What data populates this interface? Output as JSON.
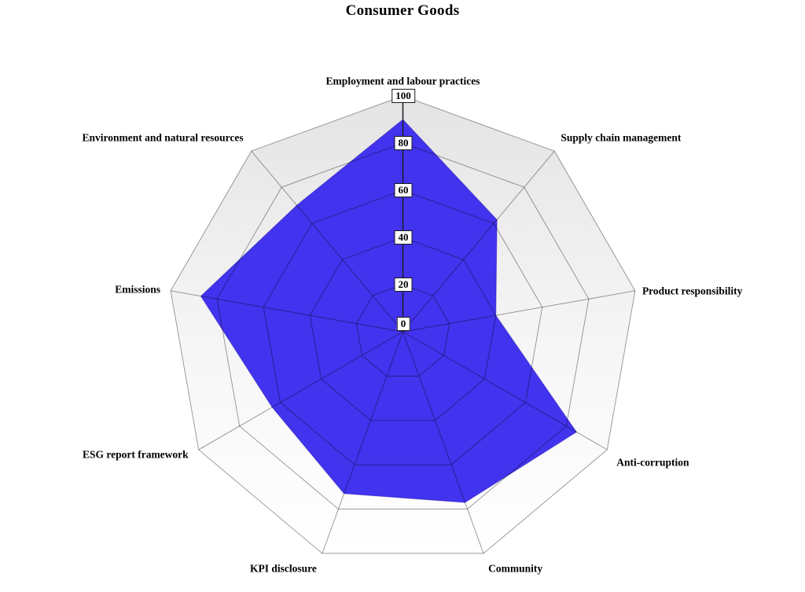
{
  "title": "Consumer Goods",
  "chart_data": {
    "type": "radar",
    "title": "Consumer Goods",
    "categories": [
      "Employment and labour practices",
      "Supply chain management",
      "Product responsibility",
      "Anti-corruption",
      "Community",
      "KPI disclosure",
      "ESG report framework",
      "Emissions",
      "Environment and natural resources"
    ],
    "series": [
      {
        "name": "Consumer Goods",
        "values": [
          90,
          62,
          40,
          85,
          77,
          73,
          64,
          87,
          70
        ]
      }
    ],
    "axis": {
      "min": 0,
      "max": 100,
      "tick_interval": 20,
      "tick_labels": [
        "0",
        "20",
        "40",
        "60",
        "80",
        "100"
      ]
    },
    "grid": "concentric 9-sided rings every 20 units with radial spokes",
    "legend": "none",
    "colors": {
      "series_fill": "#4233ee",
      "series_stroke": "#2a1bb4",
      "grid_line_outer": "#9a9a9a",
      "value_axis_line": "#1c1c28",
      "plot_bg_top": "#e4e4e4",
      "plot_bg_bottom": "#ffffff",
      "text": "#000000",
      "tick_box_bg": "#ffffff",
      "tick_box_border": "#1a1a1a"
    }
  }
}
